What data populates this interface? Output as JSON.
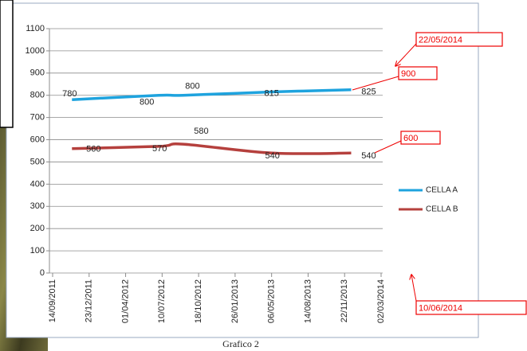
{
  "chart_data": {
    "type": "line",
    "title": "Grafico 2",
    "x": [
      "06/11/2011",
      "01/07/2012",
      "05/09/2012",
      "06/05/2013",
      "10/12/2013"
    ],
    "xlim": [
      "14/09/2011",
      "02/03/2014"
    ],
    "xticks": [
      "14/09/2011",
      "23/12/2011",
      "01/04/2012",
      "10/07/2012",
      "18/10/2012",
      "26/01/2013",
      "06/05/2013",
      "14/08/2013",
      "22/11/2013",
      "02/03/2014"
    ],
    "ylim": [
      0,
      1100
    ],
    "yticks": [
      0,
      100,
      200,
      300,
      400,
      500,
      600,
      700,
      800,
      900,
      1000,
      1100
    ],
    "grid": true,
    "legend": "right",
    "series": [
      {
        "name": "CELLA A",
        "color": "#1ea3de",
        "values": [
          780,
          800,
          800,
          815,
          825
        ]
      },
      {
        "name": "CELLA B",
        "color": "#b5403d",
        "values": [
          560,
          570,
          580,
          540,
          540
        ]
      }
    ],
    "annotations": [
      "22/05/2014",
      "900",
      "600",
      "10/06/2014"
    ]
  }
}
